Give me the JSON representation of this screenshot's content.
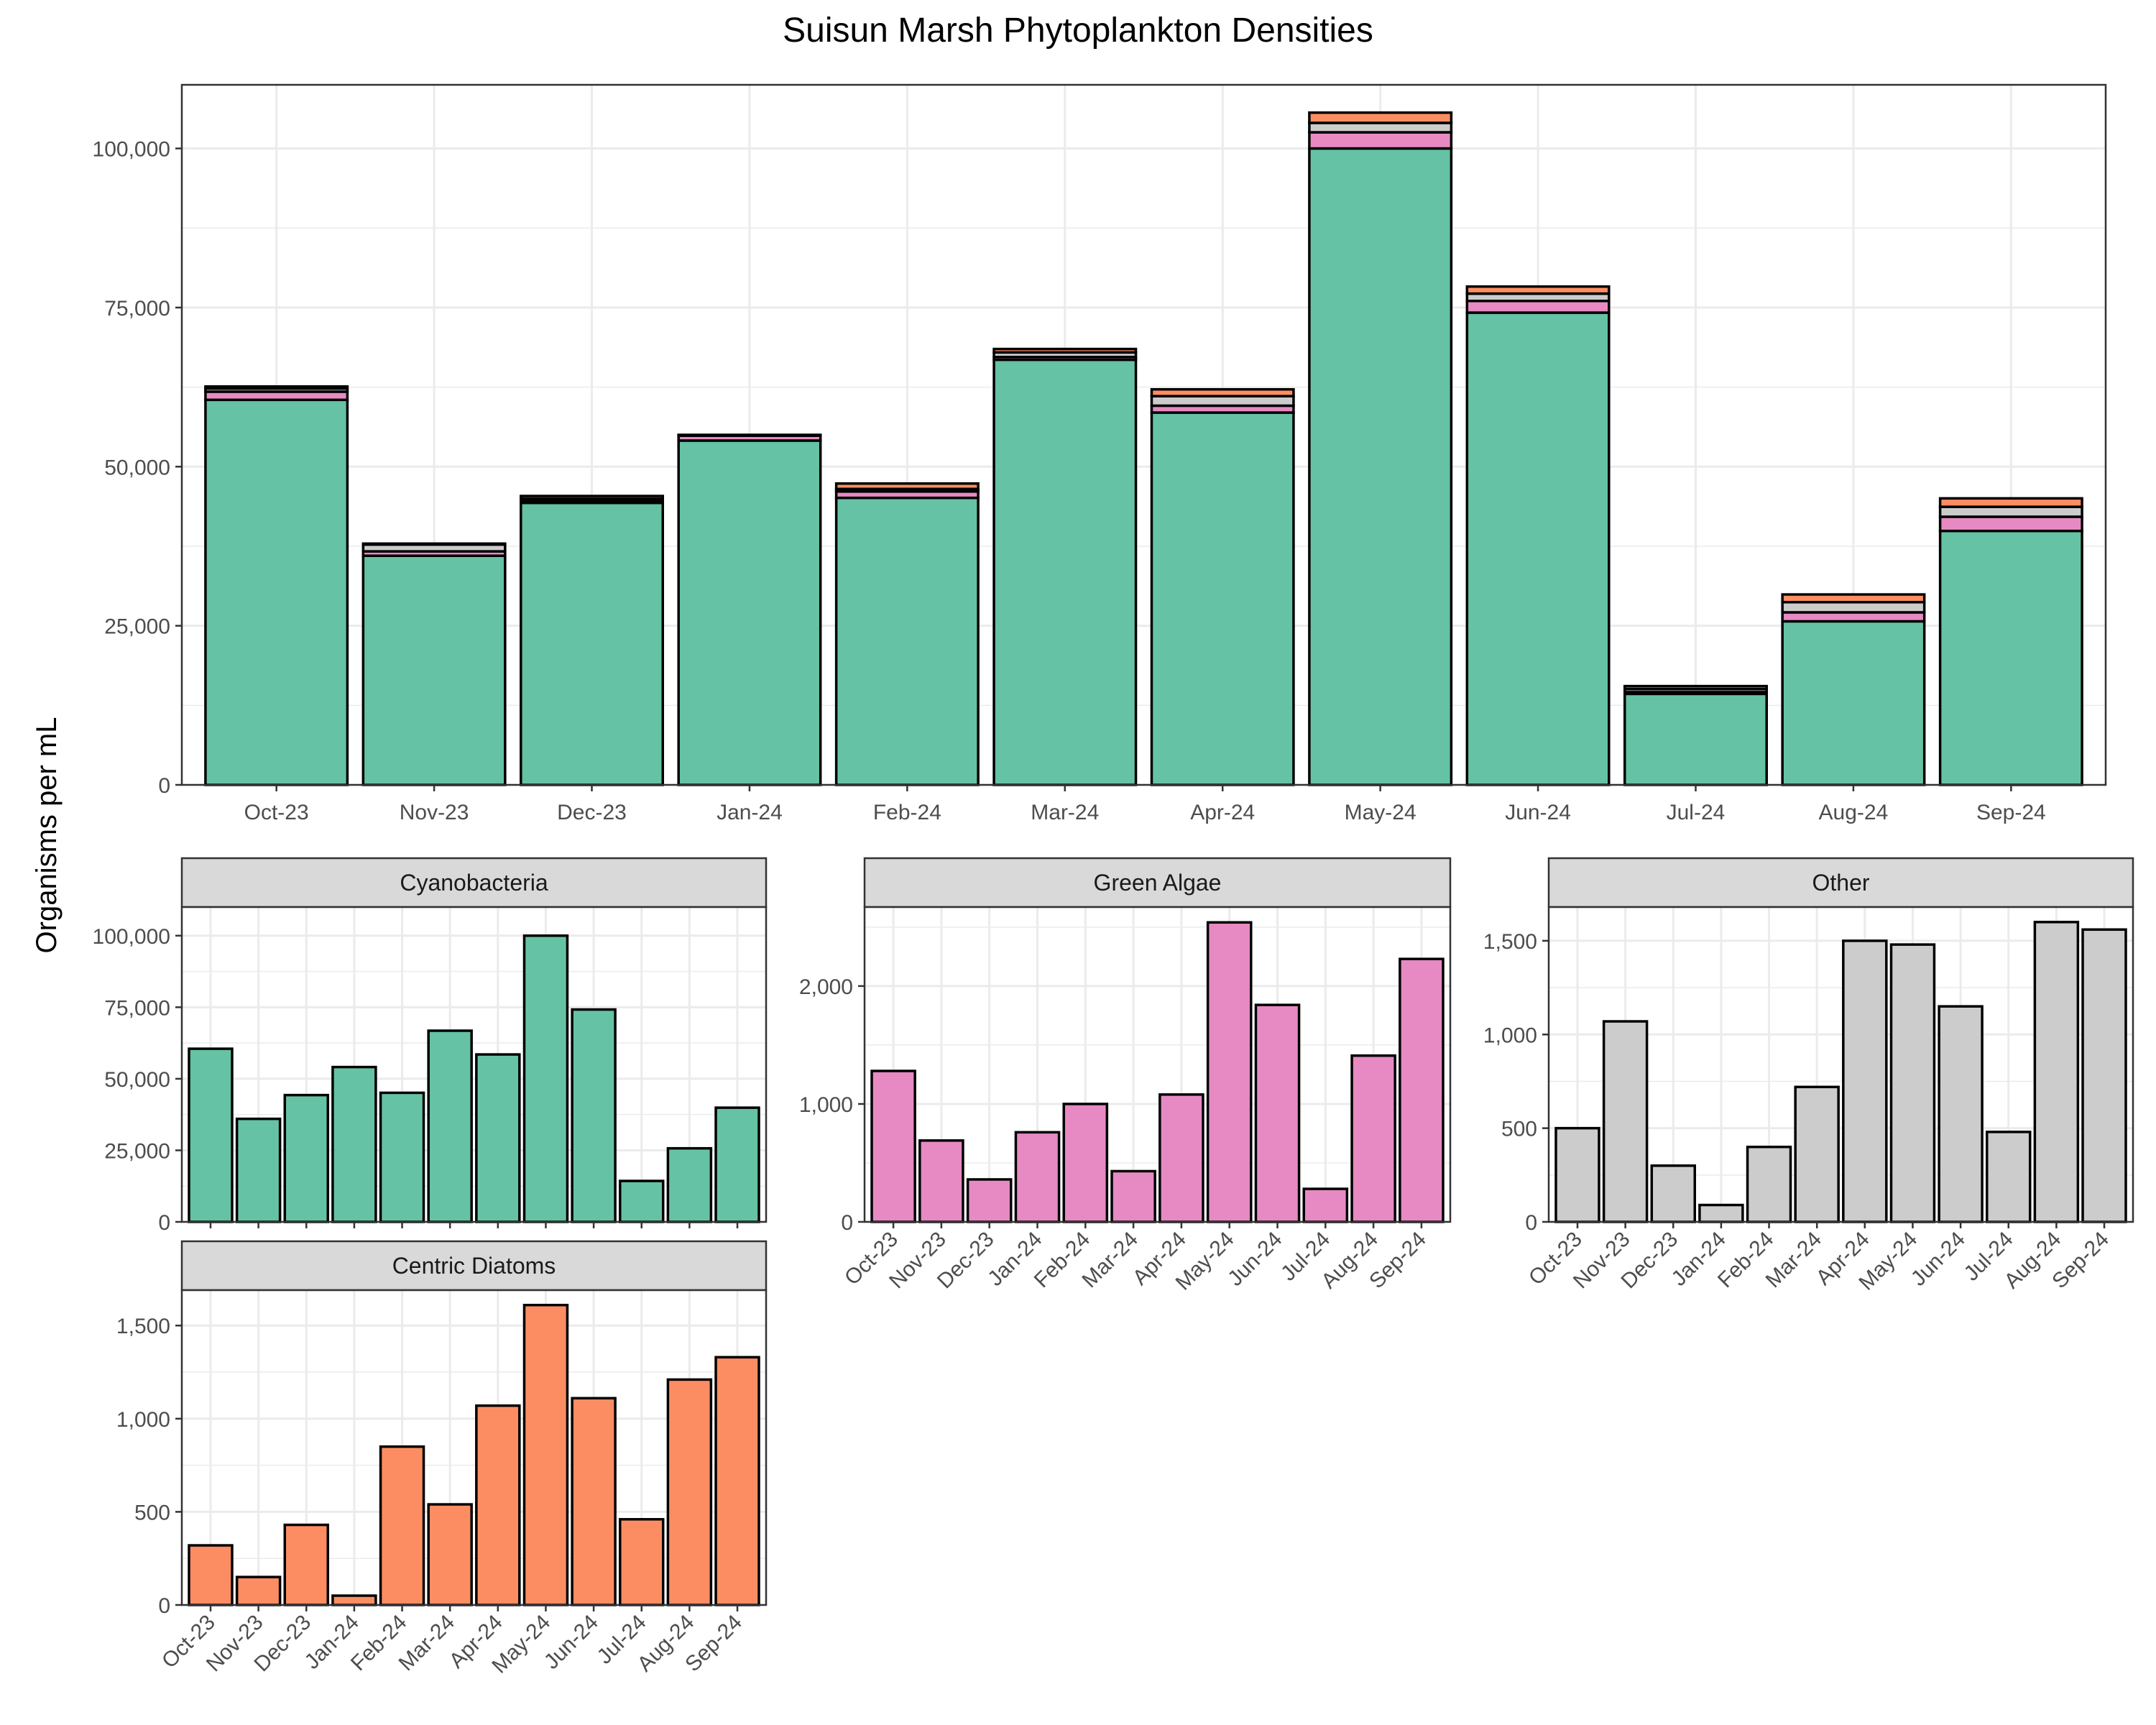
{
  "figure": {
    "title": "Suisun Marsh Phytoplankton Densities",
    "ylabel": "Organisms per mL"
  },
  "colors": {
    "Cyanobacteria": "#66c2a5",
    "Green Algae": "#e78ac3",
    "Other": "#cccccc",
    "Centric Diatoms": "#fc8d62",
    "panel_background": "#ffffff",
    "grid": "#ebebeb",
    "strip": "#d9d9d9",
    "outline": "#000000"
  },
  "chart_data": [
    {
      "type": "bar",
      "stacked": true,
      "title": "Suisun Marsh Phytoplankton Densities",
      "ylabel": "Organisms per mL",
      "categories": [
        "Oct-23",
        "Nov-23",
        "Dec-23",
        "Jan-24",
        "Feb-24",
        "Mar-24",
        "Apr-24",
        "May-24",
        "Jun-24",
        "Jul-24",
        "Aug-24",
        "Sep-24"
      ],
      "ylim": [
        0,
        110000
      ],
      "yticks": [
        0,
        25000,
        50000,
        75000,
        100000
      ],
      "ytick_labels": [
        "0",
        "25,000",
        "50,000",
        "75,000",
        "100,000"
      ],
      "grid": true,
      "series": [
        {
          "name": "Cyanobacteria",
          "values": [
            60500,
            36000,
            44300,
            54100,
            45100,
            66800,
            58500,
            100000,
            74200,
            14300,
            25700,
            39900
          ]
        },
        {
          "name": "Green Algae",
          "values": [
            1280,
            690,
            360,
            760,
            1000,
            430,
            1080,
            2540,
            1840,
            280,
            1410,
            2230
          ]
        },
        {
          "name": "Other",
          "values": [
            500,
            1070,
            300,
            90,
            400,
            720,
            1500,
            1480,
            1150,
            480,
            1600,
            1560
          ]
        },
        {
          "name": "Centric Diatoms",
          "values": [
            320,
            150,
            430,
            50,
            850,
            540,
            1070,
            1610,
            1110,
            460,
            1210,
            1330
          ]
        }
      ]
    },
    {
      "type": "bar",
      "title": "Cyanobacteria",
      "categories": [
        "Oct-23",
        "Nov-23",
        "Dec-23",
        "Jan-24",
        "Feb-24",
        "Mar-24",
        "Apr-24",
        "May-24",
        "Jun-24",
        "Jul-24",
        "Aug-24",
        "Sep-24"
      ],
      "values": [
        60500,
        36000,
        44300,
        54100,
        45100,
        66800,
        58500,
        100000,
        74200,
        14300,
        25700,
        39900
      ],
      "ylim": [
        0,
        110000
      ],
      "yticks": [
        0,
        25000,
        50000,
        75000,
        100000
      ],
      "ytick_labels": [
        "0",
        "25,000",
        "50,000",
        "75,000",
        "100,000"
      ],
      "grid": true
    },
    {
      "type": "bar",
      "title": "Green Algae",
      "categories": [
        "Oct-23",
        "Nov-23",
        "Dec-23",
        "Jan-24",
        "Feb-24",
        "Mar-24",
        "Apr-24",
        "May-24",
        "Jun-24",
        "Jul-24",
        "Aug-24",
        "Sep-24"
      ],
      "values": [
        1280,
        690,
        360,
        760,
        1000,
        430,
        1080,
        2540,
        1840,
        280,
        1410,
        2230
      ],
      "ylim": [
        0,
        2670
      ],
      "yticks": [
        0,
        1000,
        2000
      ],
      "ytick_labels": [
        "0",
        "1,000",
        "2,000"
      ],
      "grid": true
    },
    {
      "type": "bar",
      "title": "Other",
      "categories": [
        "Oct-23",
        "Nov-23",
        "Dec-23",
        "Jan-24",
        "Feb-24",
        "Mar-24",
        "Apr-24",
        "May-24",
        "Jun-24",
        "Jul-24",
        "Aug-24",
        "Sep-24"
      ],
      "values": [
        500,
        1070,
        300,
        90,
        400,
        720,
        1500,
        1480,
        1150,
        480,
        1600,
        1560
      ],
      "ylim": [
        0,
        1680
      ],
      "yticks": [
        0,
        500,
        1000,
        1500
      ],
      "ytick_labels": [
        "0",
        "500",
        "1,000",
        "1,500"
      ],
      "grid": true
    },
    {
      "type": "bar",
      "title": "Centric Diatoms",
      "categories": [
        "Oct-23",
        "Nov-23",
        "Dec-23",
        "Jan-24",
        "Feb-24",
        "Mar-24",
        "Apr-24",
        "May-24",
        "Jun-24",
        "Jul-24",
        "Aug-24",
        "Sep-24"
      ],
      "values": [
        320,
        150,
        430,
        50,
        850,
        540,
        1070,
        1610,
        1110,
        460,
        1210,
        1330
      ],
      "ylim": [
        0,
        1690
      ],
      "yticks": [
        0,
        500,
        1000,
        1500
      ],
      "ytick_labels": [
        "0",
        "500",
        "1,000",
        "1,500"
      ],
      "grid": true
    }
  ]
}
